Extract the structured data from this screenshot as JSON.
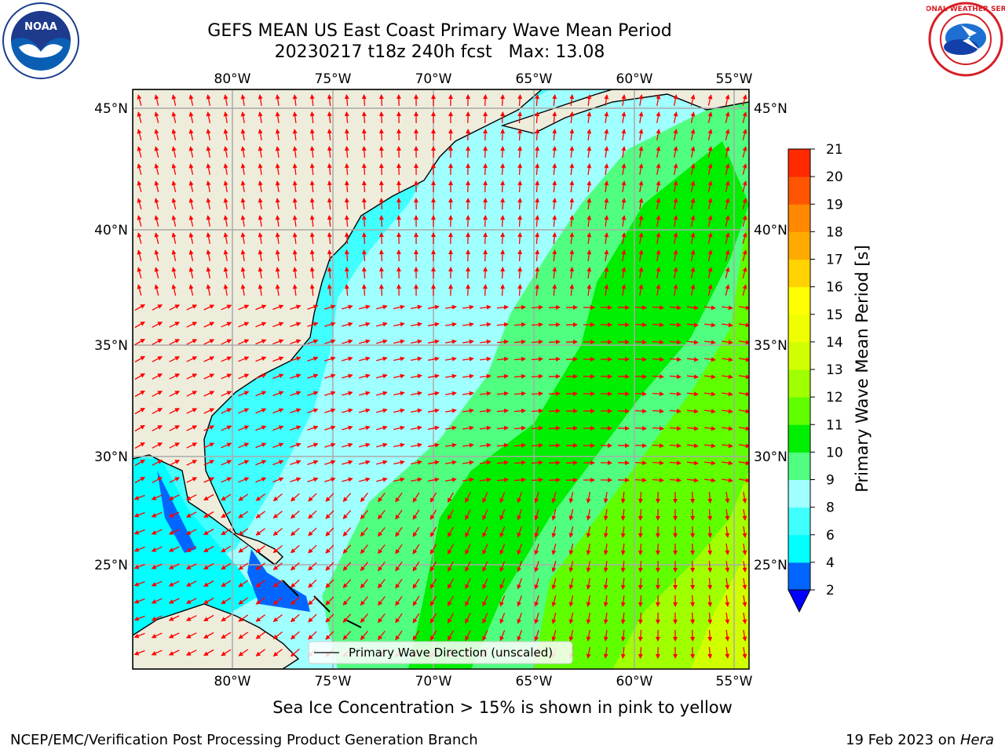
{
  "title": {
    "line1": "GEFS MEAN US East Coast Primary Wave Mean Period",
    "line2": "20230217 t18z 240h fcst   Max: 13.08"
  },
  "logos": {
    "left": {
      "icon": "noaa-logo",
      "text": "NOAA"
    },
    "right": {
      "icon": "national-weather-service-logo",
      "text": "NATIONAL WEATHER SERVICE"
    }
  },
  "map": {
    "lon_labels": [
      "80°W",
      "75°W",
      "70°W",
      "65°W",
      "60°W",
      "55°W"
    ],
    "lat_labels": [
      "45°N",
      "40°N",
      "35°N",
      "30°N",
      "25°N"
    ],
    "legend": "Primary Wave Direction (unscaled)",
    "arrow_color": "#ff0000",
    "land_color": "#eeeddc",
    "coast_color": "#000000",
    "grid_color": "#aaaaaa"
  },
  "colorbar": {
    "label": "Primary Wave Mean Period [s]",
    "ticks": [
      "2",
      "4",
      "6",
      "8",
      "9",
      "10",
      "11",
      "12",
      "13",
      "14",
      "15",
      "16",
      "17",
      "18",
      "19",
      "20",
      "21"
    ],
    "colors": [
      "#0066ff",
      "#00ffff",
      "#40ffff",
      "#a0ffff",
      "#50ff80",
      "#00ee00",
      "#60ff00",
      "#a0ff00",
      "#d0ff00",
      "#f0ff00",
      "#ffff00",
      "#ffd200",
      "#ffaa00",
      "#ff8800",
      "#ff5500",
      "#ff2a00"
    ],
    "extend_color": "#0000ff"
  },
  "footer": {
    "note": "Sea Ice Concentration > 15% is shown in pink to yellow",
    "left": "NCEP/EMC/Verification Post Processing Product Generation Branch",
    "right_prefix": "19 Feb 2023 on ",
    "right_host": "Hera"
  }
}
